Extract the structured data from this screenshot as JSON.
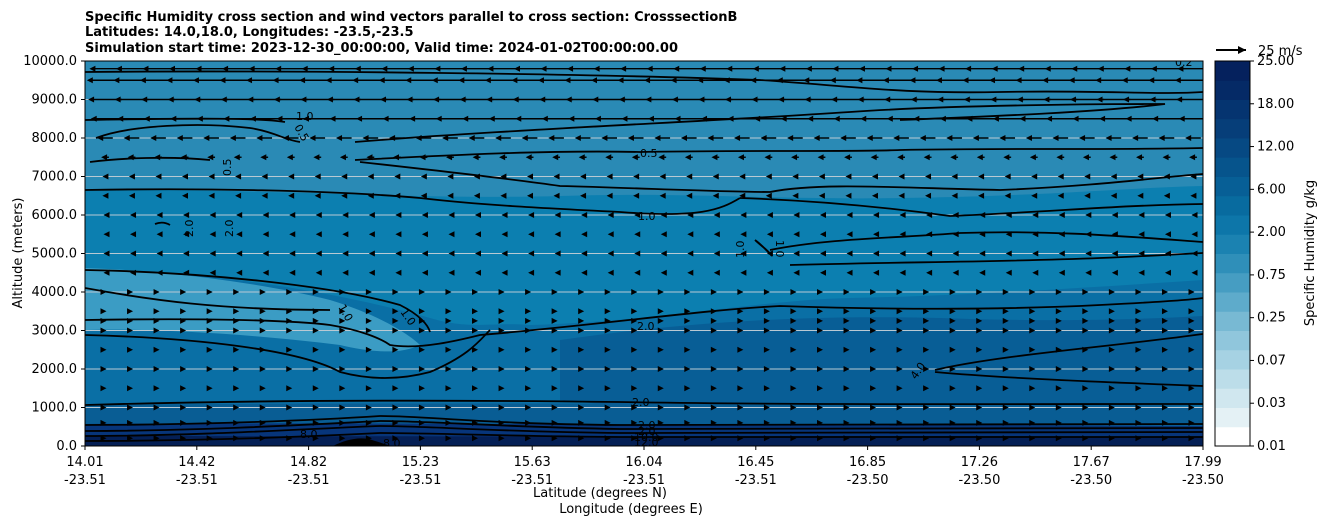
{
  "chart_data": {
    "type": "contourf",
    "title_lines": [
      "Specific Humidity cross section and wind vectors parallel to cross section: CrosssectionB",
      "Latitudes: 14.0,18.0, Longitudes: -23.5,-23.5",
      "Simulation start time: 2023-12-30_00:00:00, Valid time: 2024-01-02T00:00:00.00"
    ],
    "ylabel": "Altitude (meters)",
    "xlabel_lat": "Latitude (degrees N)",
    "xlabel_lon": "Longitude (degrees E)",
    "ylim": [
      0,
      10000
    ],
    "yticks": [
      "0.0",
      "1000.0",
      "2000.0",
      "3000.0",
      "4000.0",
      "5000.0",
      "6000.0",
      "7000.0",
      "8000.0",
      "9000.0",
      "10000.0"
    ],
    "xticks_lat": [
      "14.01",
      "14.42",
      "14.82",
      "15.23",
      "15.63",
      "16.04",
      "16.45",
      "16.85",
      "17.26",
      "17.67",
      "17.99"
    ],
    "xticks_lon": [
      "-23.51",
      "-23.51",
      "-23.51",
      "-23.51",
      "-23.51",
      "-23.51",
      "-23.51",
      "-23.50",
      "-23.50",
      "-23.50",
      "-23.50"
    ],
    "colorbar_label": "Specific Humidity g/kg",
    "colorbar_levels": [
      "0.01",
      "0.03",
      "0.07",
      "0.25",
      "0.75",
      "2.00",
      "6.00",
      "12.00",
      "18.00",
      "25.00"
    ],
    "quiver_key": "25 m/s",
    "grid": "horizontal",
    "contour_labels": [
      "0.2",
      "0.5",
      "0.5",
      "0.5",
      "1.0",
      "1.0",
      "1.0",
      "1.0",
      "1.0",
      "1.0",
      "2.0",
      "2.0",
      "2.0",
      "2.0",
      "2.0",
      "2.0",
      "4.0",
      "8.0",
      "8.0",
      "10.0",
      "12.0"
    ],
    "wind_profile": [
      {
        "altitude": 9800,
        "u": -12
      },
      {
        "altitude": 9500,
        "u": -14
      },
      {
        "altitude": 9000,
        "u": -13
      },
      {
        "altitude": 8500,
        "u": -11
      },
      {
        "altitude": 8000,
        "u": -6
      },
      {
        "altitude": 7500,
        "u": -3
      },
      {
        "altitude": 7000,
        "u": -2
      },
      {
        "altitude": 6500,
        "u": -2
      },
      {
        "altitude": 6000,
        "u": -1
      },
      {
        "altitude": 5500,
        "u": -1
      },
      {
        "altitude": 5000,
        "u": -0.5
      },
      {
        "altitude": 4500,
        "u": -0.3
      },
      {
        "altitude": 4000,
        "u": 0.2
      },
      {
        "altitude": 3500,
        "u": 0.5
      },
      {
        "altitude": 3250,
        "u": 0.8
      },
      {
        "altitude": 3000,
        "u": 0.7
      },
      {
        "altitude": 2500,
        "u": 0.6
      },
      {
        "altitude": 2000,
        "u": 0.5
      },
      {
        "altitude": 1500,
        "u": 0.5
      },
      {
        "altitude": 1000,
        "u": 0.3
      },
      {
        "altitude": 600,
        "u": 0.2
      },
      {
        "altitude": 200,
        "u": 0.1
      }
    ],
    "colors": {
      "band_top": "#2a8ab5",
      "band_mid": "#0c7fb0",
      "band_low": "#0a6fa5",
      "band_dark": "#085e96",
      "band_surface": "#07357a",
      "band_bottom": "#041f55",
      "moist_patch": "#3b9cc4",
      "contour": "#000000",
      "grid": "#b9c9d3"
    }
  }
}
